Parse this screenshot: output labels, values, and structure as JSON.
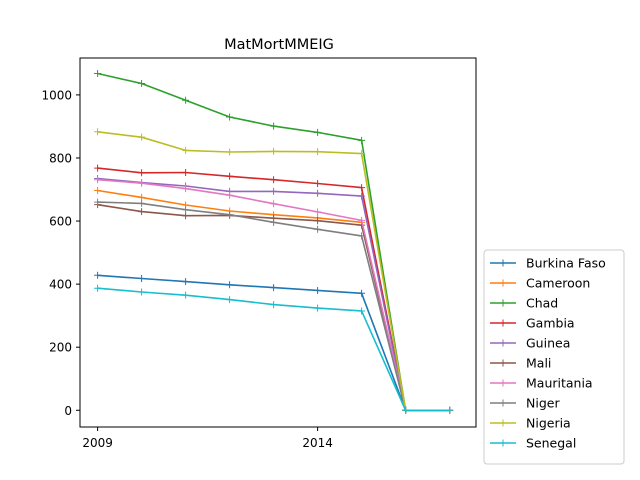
{
  "chart_data": {
    "type": "line",
    "title": "MatMortMMEIG",
    "xlabel": "",
    "ylabel": "",
    "xlim": [
      2008.6,
      2017.6
    ],
    "ylim": [
      -53,
      1117
    ],
    "x_ticks": [
      2009,
      2014
    ],
    "y_ticks": [
      0,
      200,
      400,
      600,
      800,
      1000
    ],
    "x": [
      2009,
      2010,
      2011,
      2012,
      2013,
      2014,
      2015,
      2016,
      2017
    ],
    "legend_position": "lower-right-outside",
    "grid": false,
    "series": [
      {
        "name": "Burkina Faso",
        "color": "#1f77b4",
        "values": [
          428,
          418,
          408,
          398,
          389,
          380,
          371,
          0,
          0
        ]
      },
      {
        "name": "Cameroon",
        "color": "#ff7f0e",
        "values": [
          697,
          675,
          651,
          632,
          620,
          610,
          596,
          0,
          0
        ]
      },
      {
        "name": "Chad",
        "color": "#2ca02c",
        "values": [
          1068,
          1036,
          983,
          930,
          901,
          881,
          856,
          0,
          0
        ]
      },
      {
        "name": "Gambia",
        "color": "#d62728",
        "values": [
          768,
          753,
          754,
          742,
          731,
          719,
          706,
          0,
          0
        ]
      },
      {
        "name": "Guinea",
        "color": "#9467bd",
        "values": [
          735,
          722,
          711,
          694,
          694,
          688,
          679,
          0,
          0
        ]
      },
      {
        "name": "Mali",
        "color": "#8c564b",
        "values": [
          652,
          630,
          617,
          618,
          609,
          601,
          587,
          0,
          0
        ]
      },
      {
        "name": "Mauritania",
        "color": "#e377c2",
        "values": [
          731,
          720,
          703,
          682,
          655,
          629,
          602,
          0,
          0
        ]
      },
      {
        "name": "Niger",
        "color": "#7f7f7f",
        "values": [
          660,
          656,
          636,
          620,
          596,
          574,
          553,
          0,
          0
        ]
      },
      {
        "name": "Nigeria",
        "color": "#bcbd22",
        "values": [
          883,
          866,
          824,
          819,
          821,
          820,
          814,
          0,
          0
        ]
      },
      {
        "name": "Senegal",
        "color": "#17becf",
        "values": [
          387,
          375,
          365,
          351,
          335,
          324,
          315,
          0,
          0
        ]
      }
    ]
  }
}
